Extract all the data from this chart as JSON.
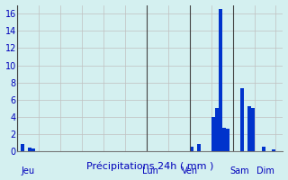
{
  "title": "Précipitations 24h ( mm )",
  "background_color": "#d4f0f0",
  "bar_color": "#0033cc",
  "grid_color": "#c0c0c0",
  "ylim": [
    0,
    17
  ],
  "yticks": [
    0,
    2,
    4,
    6,
    8,
    10,
    12,
    14,
    16
  ],
  "day_labels": [
    "Jeu",
    "Lun",
    "Ven",
    "Sam",
    "Dim"
  ],
  "values": [
    0,
    0.8,
    0,
    0.4,
    0.3,
    0,
    0,
    0,
    0,
    0,
    0,
    0,
    0,
    0,
    0,
    0,
    0,
    0,
    0,
    0,
    0,
    0,
    0,
    0,
    0,
    0,
    0,
    0,
    0,
    0,
    0,
    0,
    0,
    0,
    0,
    0,
    0,
    0,
    0,
    0,
    0,
    0,
    0,
    0,
    0,
    0,
    0,
    0,
    0.5,
    0,
    0.8,
    0,
    0,
    0,
    4.0,
    5.0,
    16.5,
    2.7,
    2.6,
    0,
    0,
    0,
    7.3,
    0,
    5.2,
    5.0,
    0,
    0,
    0.5,
    0,
    0,
    0.2,
    0,
    0
  ],
  "tick_fontsize": 7,
  "label_fontsize": 8
}
